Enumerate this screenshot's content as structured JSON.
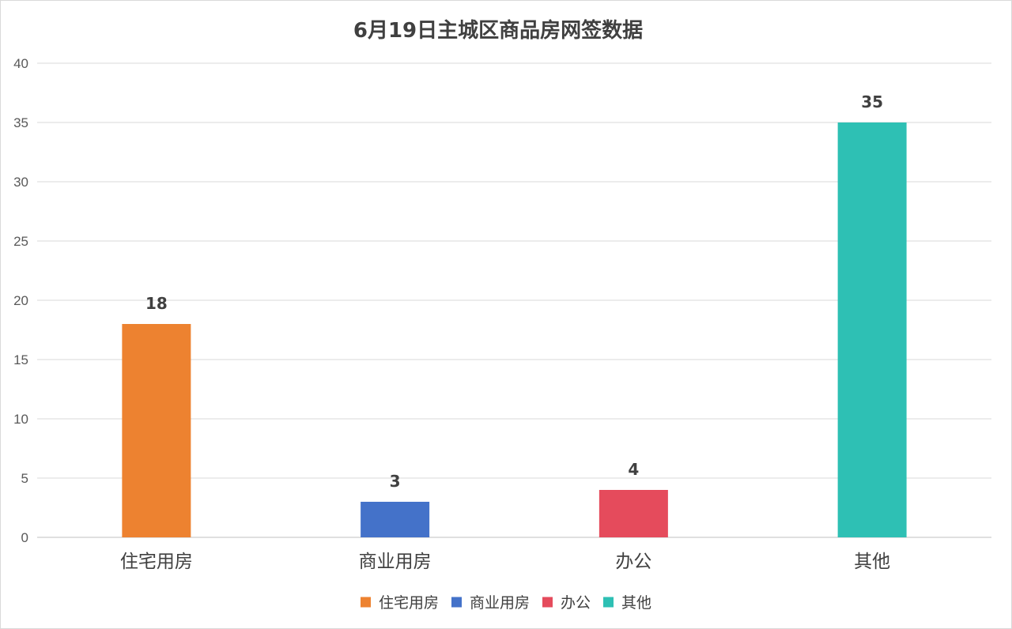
{
  "chart_data": {
    "type": "bar",
    "title": "6月19日主城区商品房网签数据",
    "categories": [
      "住宅用房",
      "商业用房",
      "办公",
      "其他"
    ],
    "values": [
      18,
      3,
      4,
      35
    ],
    "colors": [
      "#ed8230",
      "#4472c9",
      "#e54b5c",
      "#2ec0b4"
    ],
    "ylim": [
      0,
      40
    ],
    "yticks": [
      0,
      5,
      10,
      15,
      20,
      25,
      30,
      35,
      40
    ],
    "grid": true,
    "legend": {
      "position": "bottom",
      "entries": [
        "住宅用房",
        "商业用房",
        "办公",
        "其他"
      ]
    },
    "data_labels": true
  }
}
